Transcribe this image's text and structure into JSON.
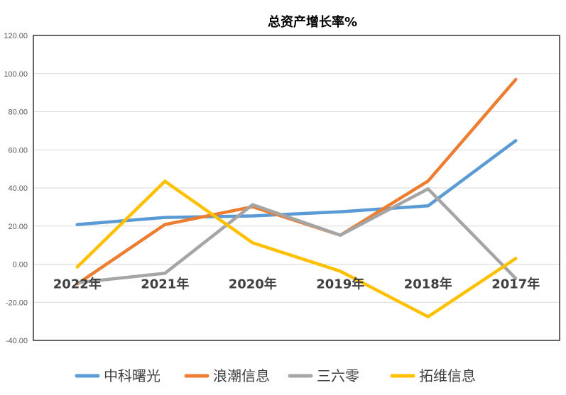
{
  "chart_data": {
    "type": "line",
    "title": "总资产增长率%",
    "categories": [
      "2022年",
      "2021年",
      "2020年",
      "2019年",
      "2018年",
      "2017年"
    ],
    "ylim": [
      -40,
      120
    ],
    "yticks": [
      "120.00",
      "100.00",
      "80.00",
      "60.00",
      "40.00",
      "20.00",
      "0.00",
      "-20.00",
      "-40.00"
    ],
    "ytick_values": [
      120,
      100,
      80,
      60,
      40,
      20,
      0,
      -20,
      -40
    ],
    "grid": true,
    "legend_position": "bottom",
    "series": [
      {
        "name": "中科曙光",
        "color": "#5B9BD5",
        "values": [
          20.8,
          24.5,
          25.3,
          27.5,
          30.6,
          64.8
        ]
      },
      {
        "name": "浪潮信息",
        "color": "#ED7D31",
        "values": [
          -10.4,
          20.8,
          30.1,
          15.2,
          43.6,
          96.9
        ]
      },
      {
        "name": "三六零",
        "color": "#A5A5A5",
        "values": [
          -9.7,
          -4.8,
          31.2,
          15.2,
          39.5,
          -7.5
        ]
      },
      {
        "name": "拓维信息",
        "color": "#FFC000",
        "values": [
          -1.5,
          43.5,
          11.2,
          -3.7,
          -27.6,
          3.0
        ]
      }
    ]
  }
}
